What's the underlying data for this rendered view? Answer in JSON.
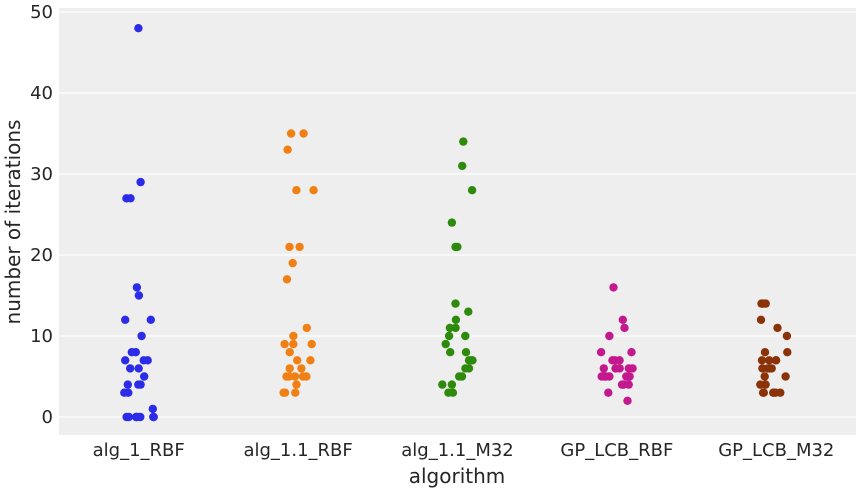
{
  "chart_data": {
    "type": "scatter",
    "subtype": "strip",
    "title": "",
    "xlabel": "algorithm",
    "ylabel": "number of iterations",
    "ylim": [
      -2.4,
      50.5
    ],
    "yticks": [
      0,
      10,
      20,
      30,
      40,
      50
    ],
    "grid": true,
    "background": "#eeeeee",
    "categories": [
      "alg_1_RBF",
      "alg_1.1_RBF",
      "alg_1.1_M32",
      "GP_LCB_RBF",
      "GP_LCB_M32"
    ],
    "series": [
      {
        "category": "alg_1_RBF",
        "color": "#2b2be8",
        "values": [
          48,
          29,
          27,
          27,
          16,
          15,
          12,
          12,
          10,
          8,
          8,
          7,
          7,
          7,
          6,
          6,
          5,
          4,
          4,
          4,
          3,
          3,
          1,
          0,
          0,
          0,
          0,
          0,
          0,
          0
        ]
      },
      {
        "category": "alg_1.1_RBF",
        "color": "#f07f14",
        "values": [
          35,
          35,
          33,
          28,
          28,
          21,
          21,
          19,
          17,
          11,
          10,
          9,
          9,
          9,
          8,
          7,
          7,
          6,
          6,
          5,
          5,
          5,
          5,
          5,
          4,
          3,
          3,
          3
        ]
      },
      {
        "category": "alg_1.1_M32",
        "color": "#2d8a0a",
        "values": [
          34,
          31,
          28,
          24,
          21,
          21,
          14,
          13,
          12,
          11,
          11,
          10,
          10,
          9,
          8,
          8,
          7,
          7,
          7,
          6,
          6,
          5,
          5,
          4,
          4,
          3,
          3
        ]
      },
      {
        "category": "GP_LCB_RBF",
        "color": "#c4188e",
        "values": [
          16,
          12,
          11,
          10,
          8,
          8,
          7,
          7,
          7,
          6,
          6,
          6,
          6,
          6,
          6,
          5,
          5,
          5,
          5,
          5,
          5,
          4,
          4,
          4,
          4,
          3,
          2
        ]
      },
      {
        "category": "GP_LCB_M32",
        "color": "#8a3208",
        "values": [
          14,
          14,
          14,
          12,
          11,
          10,
          8,
          8,
          7,
          7,
          7,
          7,
          6,
          6,
          6,
          6,
          5,
          5,
          4,
          4,
          3,
          3,
          3,
          3,
          3,
          3
        ]
      }
    ]
  }
}
